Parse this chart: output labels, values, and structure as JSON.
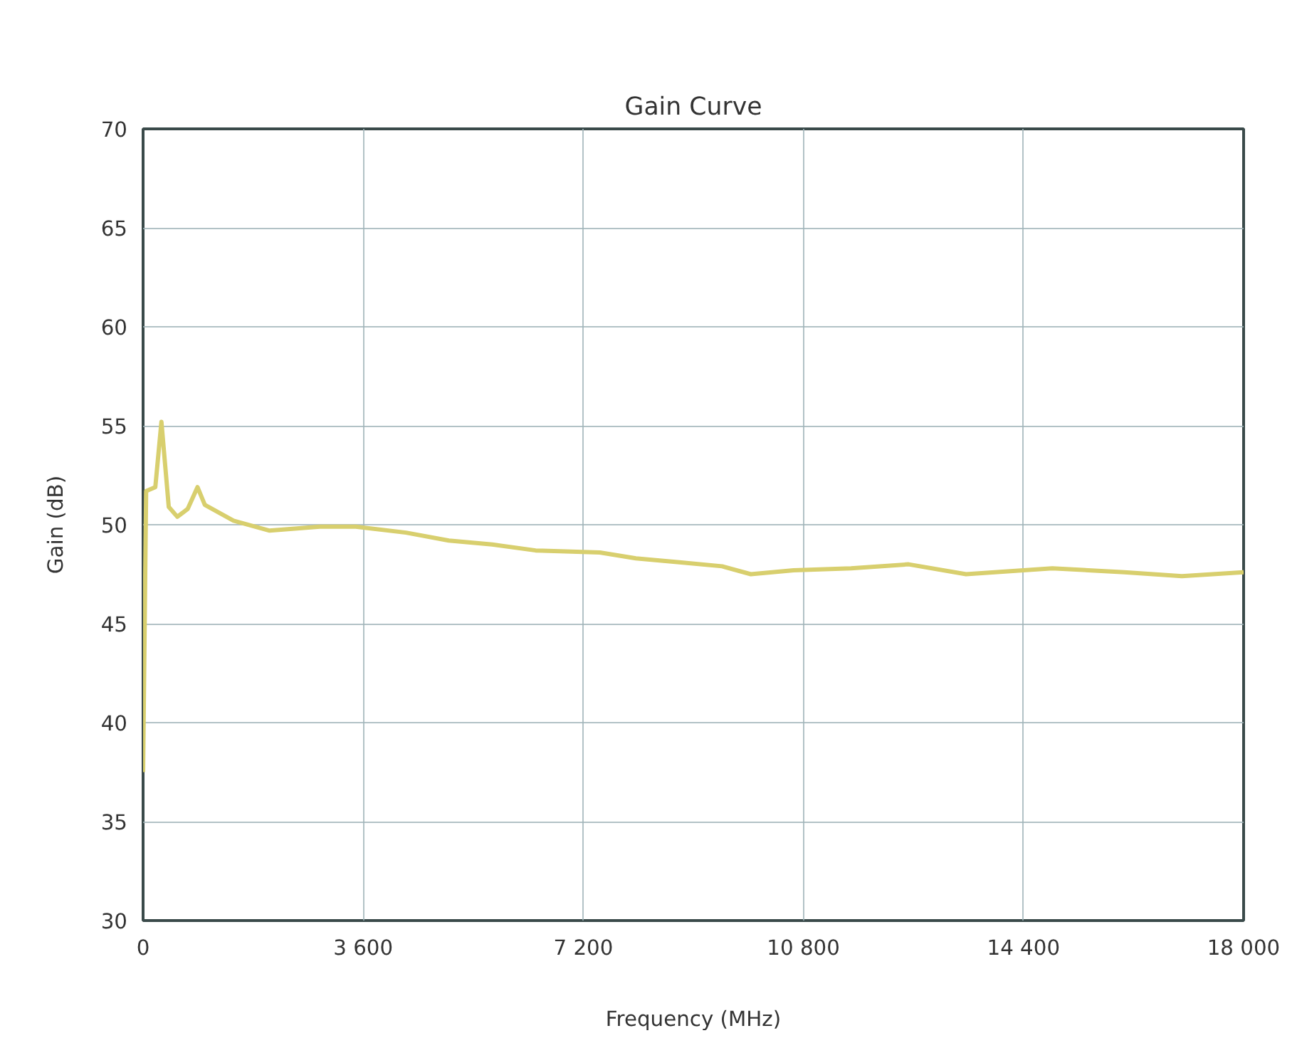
{
  "chart_data": {
    "type": "line",
    "title": "Gain Curve",
    "xlabel": "Frequency (MHz)",
    "ylabel": "Gain (dB)",
    "x": [
      0,
      50,
      200,
      300,
      420,
      560,
      730,
      890,
      1010,
      1480,
      2070,
      2890,
      3480,
      4300,
      5000,
      5710,
      6420,
      7470,
      8060,
      8770,
      9470,
      9940,
      10640,
      11580,
      12520,
      13460,
      13930,
      14870,
      16050,
      16990,
      18000
    ],
    "series": [
      {
        "color": "#d8cf6e",
        "values": [
          37.5,
          51.7,
          51.9,
          55.2,
          50.9,
          50.4,
          50.8,
          51.9,
          51.0,
          50.2,
          49.7,
          49.9,
          49.9,
          49.6,
          49.2,
          49.0,
          48.7,
          48.6,
          48.3,
          48.1,
          47.9,
          47.5,
          47.7,
          47.8,
          48.0,
          47.5,
          47.6,
          47.8,
          47.6,
          47.4,
          47.6
        ]
      }
    ],
    "xlim": [
      0,
      18000
    ],
    "ylim": [
      30,
      70
    ],
    "xticks": [
      0,
      {
        "value": 3600,
        "label": "3 600"
      },
      {
        "value": 7200,
        "label": "7 200"
      },
      {
        "value": 10800,
        "label": "10 800"
      },
      {
        "value": 14400,
        "label": "14 400"
      },
      {
        "value": 18000,
        "label": "18 000"
      }
    ],
    "yticks": [
      30,
      35,
      40,
      45,
      50,
      55,
      60,
      65,
      70
    ],
    "grid": true,
    "marker": "none",
    "line_style": "solid"
  }
}
